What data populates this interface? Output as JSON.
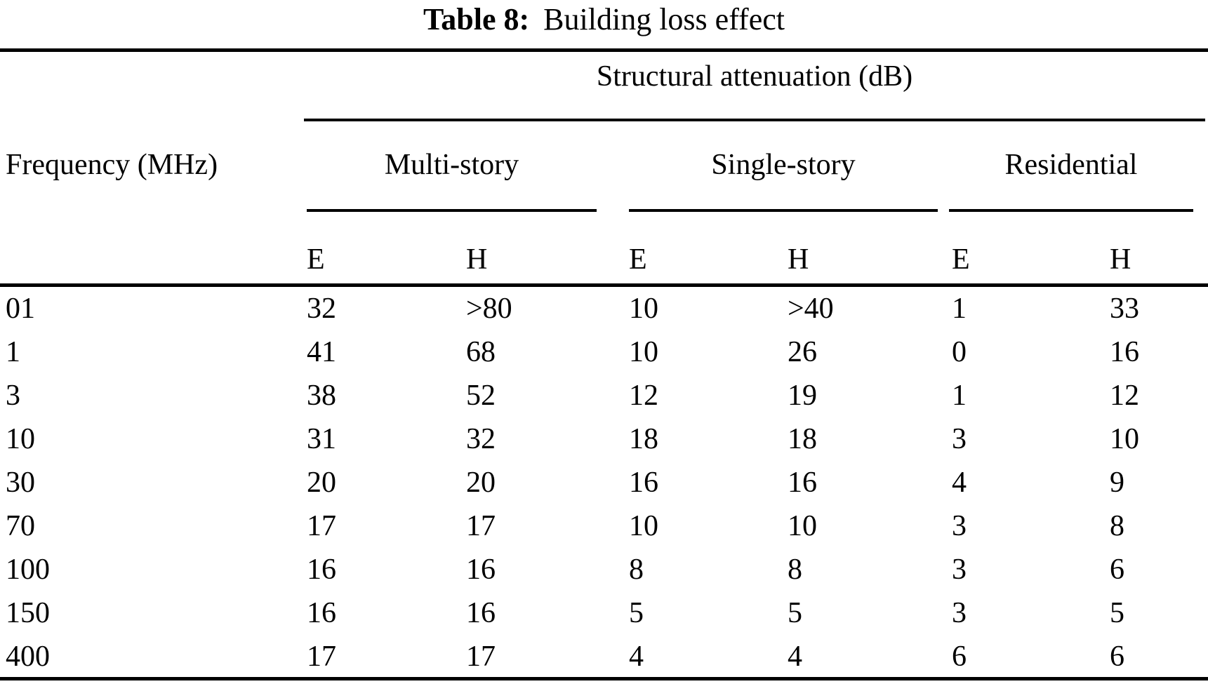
{
  "title": {
    "label": "Table 8:",
    "caption": "Building loss effect"
  },
  "colors": {
    "text": "#000000",
    "background": "#ffffff",
    "rule": "#000000"
  },
  "table": {
    "spanner_header": "Structural attenuation (dB)",
    "row_axis_header": "Frequency (MHz)",
    "groups": [
      {
        "label": "Multi-story",
        "sub_columns": [
          "E",
          "H"
        ]
      },
      {
        "label": "Single-story",
        "sub_columns": [
          "E",
          "H"
        ]
      },
      {
        "label": "Residential",
        "sub_columns": [
          "E",
          "H"
        ]
      }
    ],
    "rows": [
      [
        "01",
        "32",
        ">80",
        "10",
        ">40",
        "1",
        "33"
      ],
      [
        "1",
        "41",
        "68",
        "10",
        "26",
        "0",
        "16"
      ],
      [
        "3",
        "38",
        "52",
        "12",
        "19",
        "1",
        "12"
      ],
      [
        "10",
        "31",
        "32",
        "18",
        "18",
        "3",
        "10"
      ],
      [
        "30",
        "20",
        "20",
        "16",
        "16",
        "4",
        "9"
      ],
      [
        "70",
        "17",
        "17",
        "10",
        "10",
        "3",
        "8"
      ],
      [
        "100",
        "16",
        "16",
        "8",
        "8",
        "3",
        "6"
      ],
      [
        "150",
        "16",
        "16",
        "5",
        "5",
        "3",
        "5"
      ],
      [
        "400",
        "17",
        "17",
        "4",
        "4",
        "6",
        "6"
      ]
    ]
  }
}
